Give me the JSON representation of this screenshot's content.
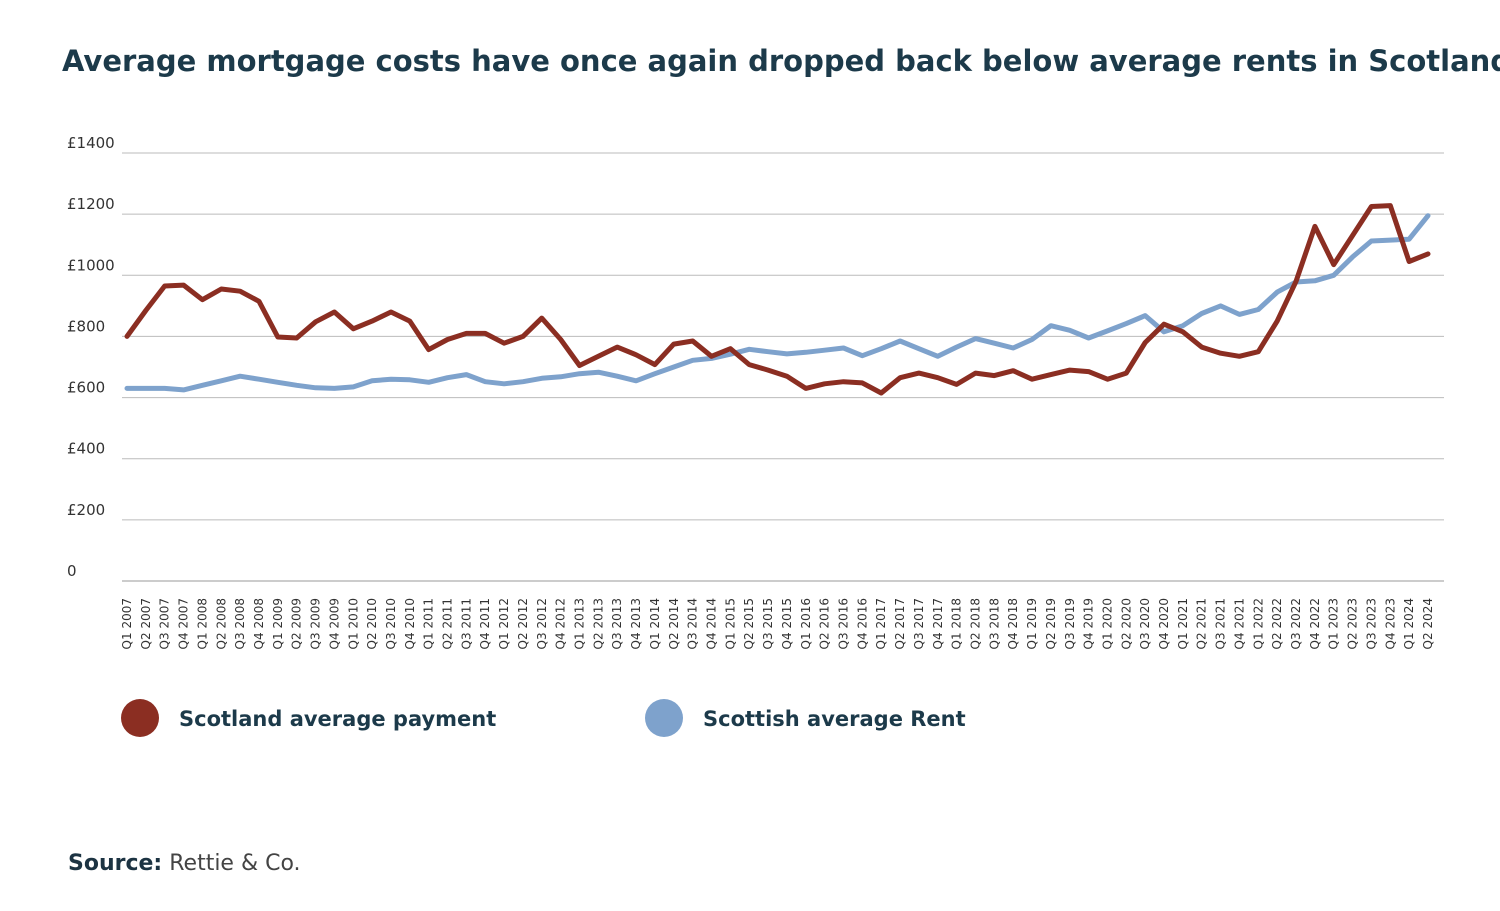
{
  "chart_data": {
    "type": "line",
    "title": "Average mortgage costs have once again dropped back below average rents in Scotland",
    "categories": [
      "Q1 2007",
      "Q2 2007",
      "Q3 2007",
      "Q4 2007",
      "Q1 2008",
      "Q2 2008",
      "Q3 2008",
      "Q4 2008",
      "Q1 2009",
      "Q2 2009",
      "Q3 2009",
      "Q4 2009",
      "Q1 2010",
      "Q2 2010",
      "Q3 2010",
      "Q4 2010",
      "Q1 2011",
      "Q2 2011",
      "Q3 2011",
      "Q4 2011",
      "Q1 2012",
      "Q2 2012",
      "Q3 2012",
      "Q4 2012",
      "Q1 2013",
      "Q2 2013",
      "Q3 2013",
      "Q4 2013",
      "Q1 2014",
      "Q2 2014",
      "Q3 2014",
      "Q4 2014",
      "Q1 2015",
      "Q2 2015",
      "Q3 2015",
      "Q4 2015",
      "Q1 2016",
      "Q2 2016",
      "Q3 2016",
      "Q4 2016",
      "Q1 2017",
      "Q2 2017",
      "Q3 2017",
      "Q4 2017",
      "Q1 2018",
      "Q2 2018",
      "Q3 2018",
      "Q4 2018",
      "Q1 2019",
      "Q2 2019",
      "Q3 2019",
      "Q4 2019",
      "Q1 2020",
      "Q2 2020",
      "Q3 2020",
      "Q4 2020",
      "Q1 2021",
      "Q2 2021",
      "Q3 2021",
      "Q4 2021",
      "Q1 2022",
      "Q2 2022",
      "Q3 2022",
      "Q4 2022",
      "Q1 2023",
      "Q2 2023",
      "Q3 2023",
      "Q4 2023",
      "Q1 2024",
      "Q2 2024"
    ],
    "series": [
      {
        "name": "Scotland average payment",
        "color": "#8b2e22",
        "values": [
          800,
          885,
          965,
          968,
          920,
          955,
          948,
          915,
          798,
          795,
          848,
          880,
          825,
          850,
          880,
          850,
          757,
          790,
          810,
          810,
          778,
          800,
          860,
          790,
          705,
          735,
          765,
          740,
          708,
          775,
          785,
          735,
          760,
          708,
          690,
          670,
          630,
          645,
          652,
          648,
          615,
          665,
          680,
          665,
          643,
          680,
          672,
          688,
          660,
          675,
          690,
          685,
          660,
          680,
          780,
          840,
          815,
          765,
          745,
          735,
          750,
          850,
          980,
          1160,
          1035,
          1130,
          1225,
          1228,
          1045,
          1070
        ]
      },
      {
        "name": "Scottish average Rent",
        "color": "#7ea2cc",
        "values": [
          630,
          630,
          630,
          625,
          640,
          655,
          670,
          660,
          650,
          640,
          632,
          630,
          635,
          655,
          660,
          658,
          650,
          665,
          675,
          652,
          645,
          652,
          663,
          668,
          678,
          683,
          670,
          655,
          678,
          700,
          722,
          728,
          742,
          758,
          750,
          743,
          748,
          755,
          762,
          737,
          760,
          785,
          760,
          735,
          765,
          793,
          778,
          762,
          790,
          835,
          820,
          795,
          818,
          842,
          868,
          815,
          835,
          875,
          900,
          872,
          888,
          945,
          978,
          982,
          1000,
          1060,
          1112,
          1115,
          1118,
          1195
        ]
      }
    ],
    "ylim": [
      0,
      1400
    ],
    "yticks": [
      0,
      {
        "value": 200,
        "label": "£200"
      },
      {
        "value": 400,
        "label": "£400"
      },
      {
        "value": 600,
        "label": "£600"
      },
      {
        "value": 800,
        "label": "£800"
      },
      {
        "value": 1000,
        "label": "£1000"
      },
      {
        "value": 1200,
        "label": "£1200"
      },
      {
        "value": 1400,
        "label": "£1400"
      }
    ],
    "grid": true,
    "source_label": "Source:",
    "source": "Rettie & Co."
  }
}
